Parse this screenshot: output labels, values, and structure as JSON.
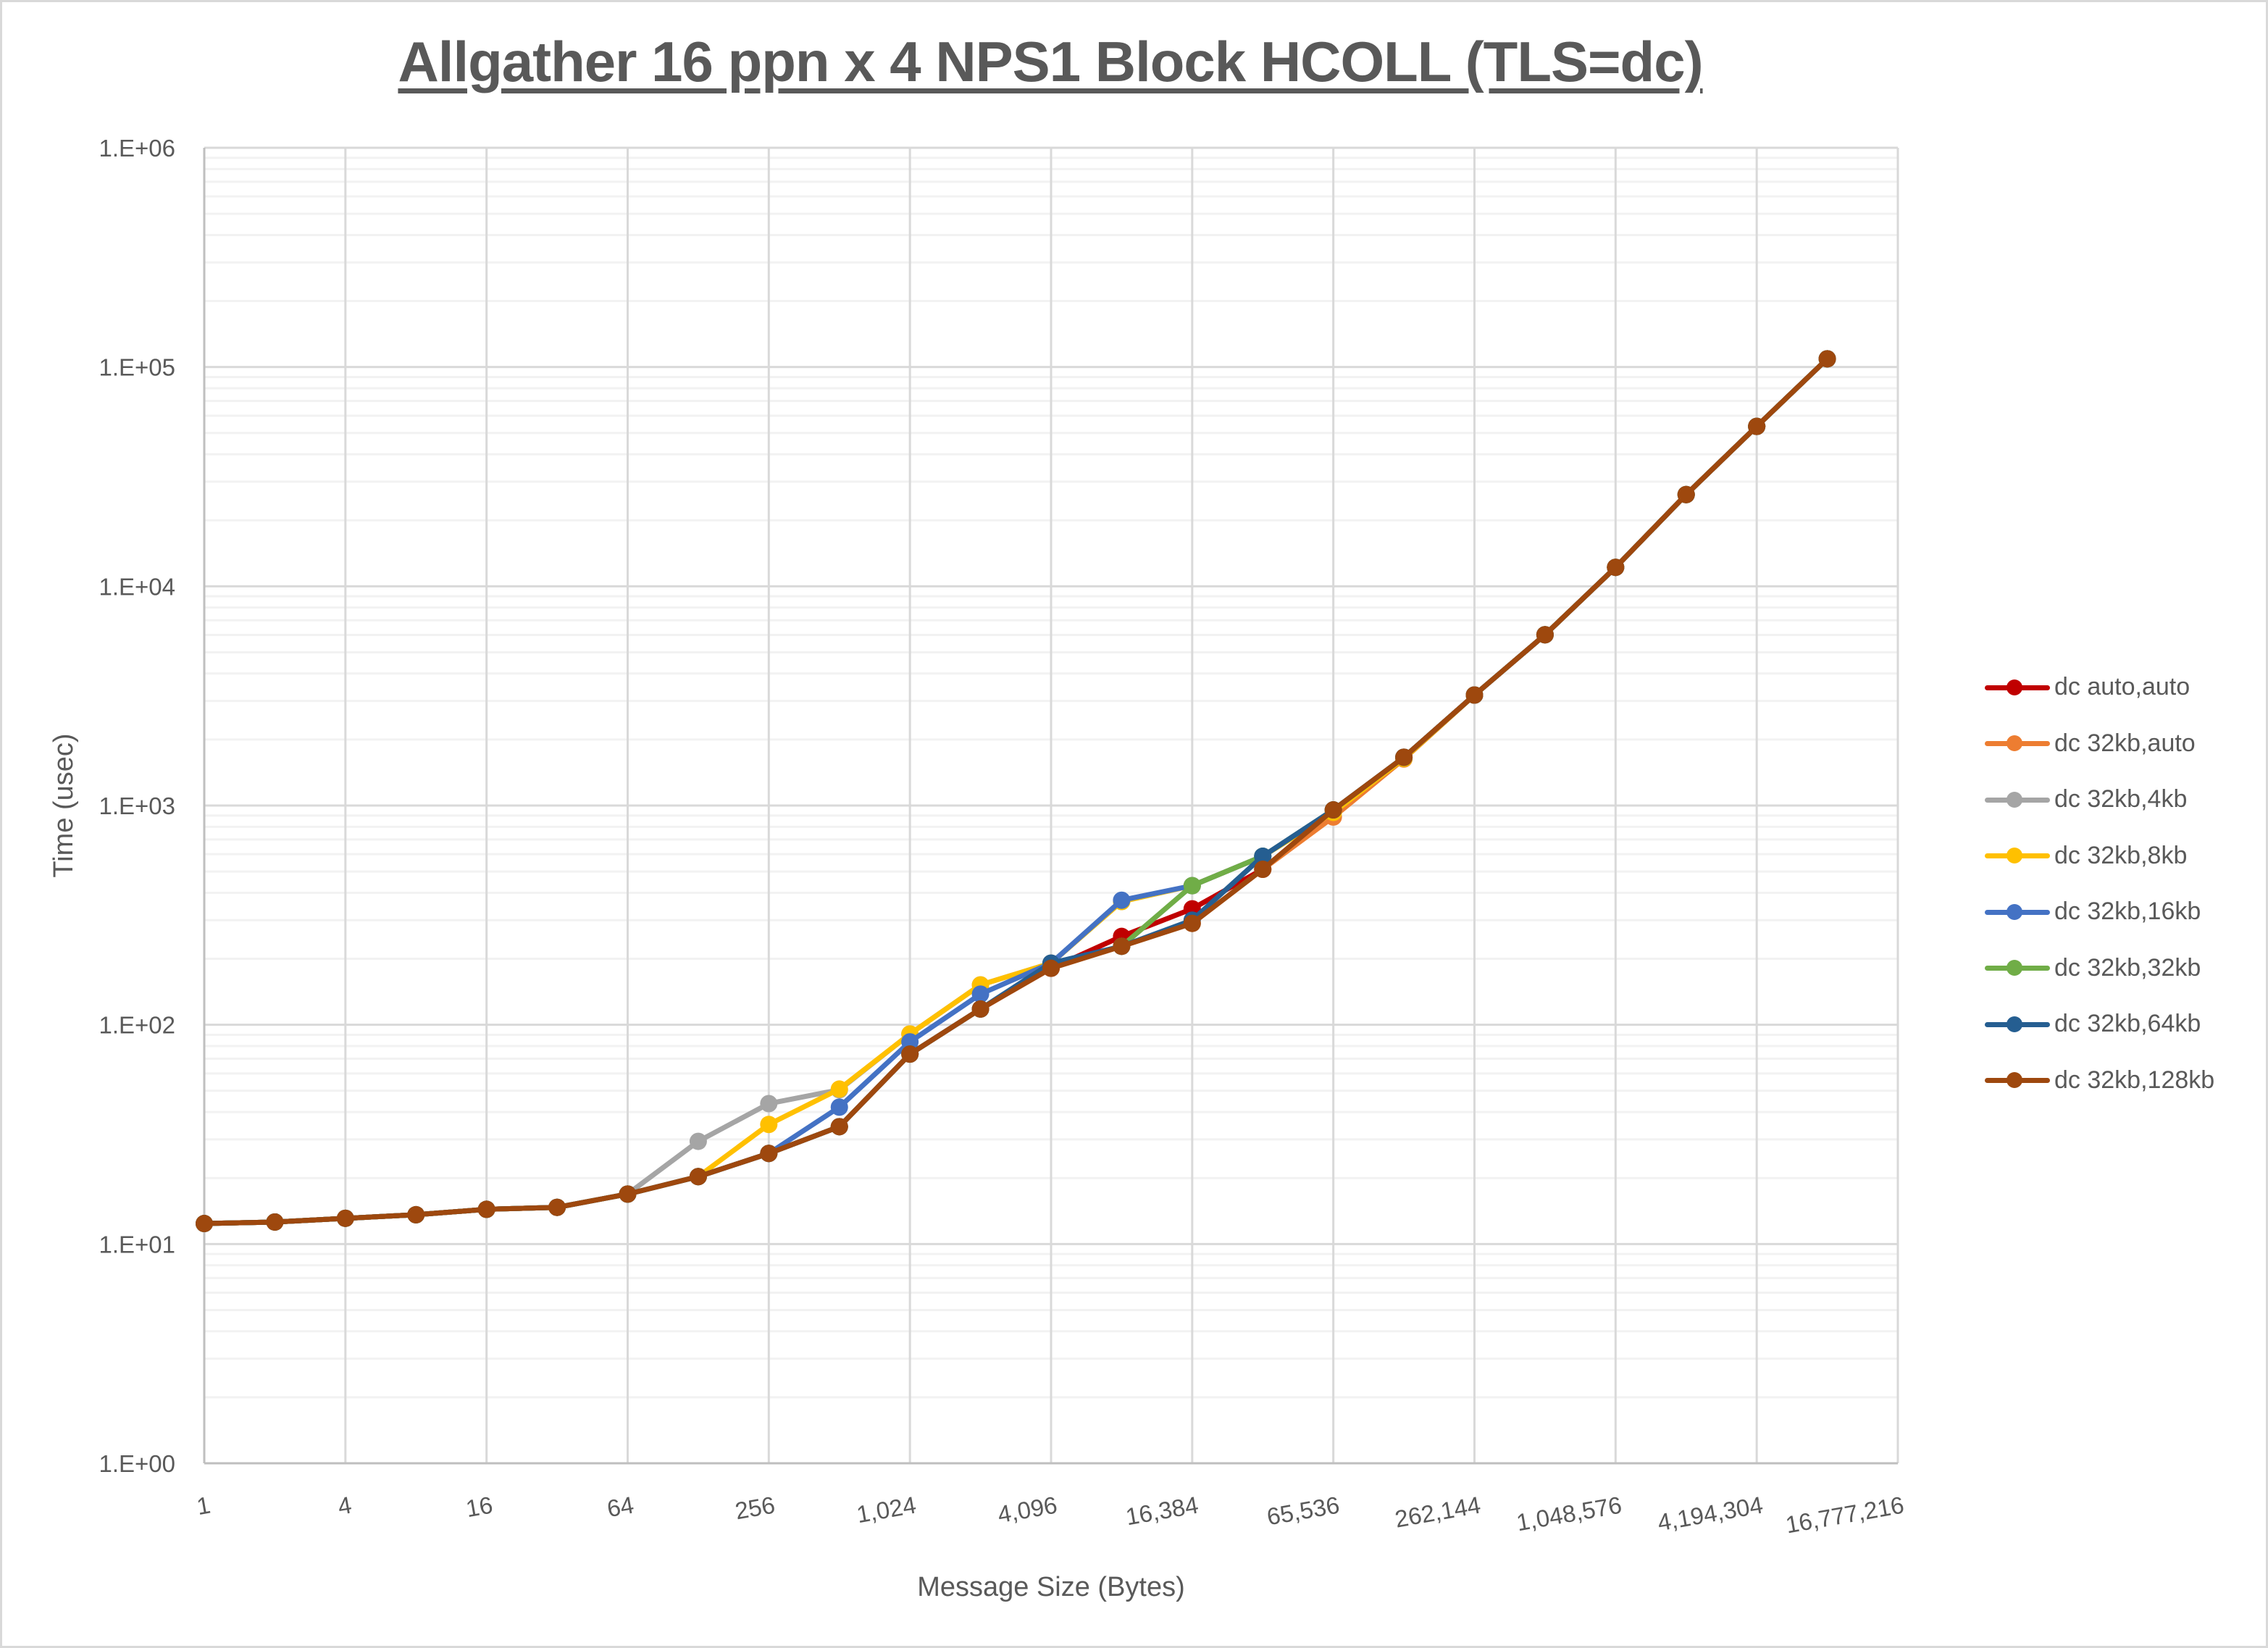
{
  "title": "Allgather 16 ppn x 4 NPS1 Block HCOLL (TLS=dc)",
  "chart_data": {
    "type": "line",
    "title": "Allgather 16 ppn x 4 NPS1 Block HCOLL (TLS=dc)",
    "xlabel": "Message Size (Bytes)",
    "ylabel": "Time (usec)",
    "x_scale": "log2",
    "y_scale": "log10",
    "ylim": [
      1,
      1000000
    ],
    "xlim": [
      1,
      16777216
    ],
    "grid": true,
    "legend_position": "right",
    "y_tick_labels": [
      "1.E+00",
      "1.E+01",
      "1.E+02",
      "1.E+03",
      "1.E+04",
      "1.E+05",
      "1.E+06"
    ],
    "x_tick_labels": [
      "1",
      "4",
      "16",
      "64",
      "256",
      "1,024",
      "4,096",
      "16,384",
      "65,536",
      "262,144",
      "1,048,576",
      "4,194,304",
      "16,777,216"
    ],
    "x": [
      1,
      2,
      4,
      8,
      16,
      32,
      64,
      128,
      256,
      512,
      1024,
      2048,
      4096,
      8192,
      16384,
      32768,
      65536,
      131072,
      262144,
      524288,
      1048576,
      2097152,
      4194304,
      8388608
    ],
    "series": [
      {
        "name": "dc auto,auto",
        "color": "#c00000",
        "values": [
          12.4,
          12.6,
          13.1,
          13.6,
          14.4,
          14.7,
          16.9,
          20.3,
          25.9,
          34.3,
          73.5,
          118,
          181,
          253,
          338,
          512,
          955,
          1660,
          3190,
          6010,
          12200,
          26200,
          53600,
          109000
        ]
      },
      {
        "name": "dc 32kb,auto",
        "color": "#ed7d31",
        "values": [
          12.4,
          12.6,
          13.1,
          13.6,
          14.4,
          14.7,
          16.9,
          20.3,
          25.9,
          34.3,
          73.5,
          118,
          181,
          228,
          290,
          512,
          886,
          1630,
          3190,
          6010,
          12200,
          26200,
          53600,
          109000
        ]
      },
      {
        "name": "dc 32kb,4kb",
        "color": "#a5a5a5",
        "values": [
          12.4,
          12.6,
          13.1,
          13.6,
          14.4,
          14.7,
          16.9,
          29.4,
          43.7,
          50.5,
          90.8,
          152,
          191,
          365,
          431,
          587,
          955,
          1660,
          3190,
          6010,
          12200,
          26200,
          53600,
          109000
        ]
      },
      {
        "name": "dc 32kb,8kb",
        "color": "#ffc000",
        "values": [
          12.4,
          12.6,
          13.1,
          13.6,
          14.4,
          14.7,
          16.9,
          20.3,
          35.1,
          50.9,
          90.8,
          152,
          191,
          365,
          431,
          587,
          930,
          1640,
          3190,
          6010,
          12200,
          26200,
          53600,
          109000
        ]
      },
      {
        "name": "dc 32kb,16kb",
        "color": "#4472c4",
        "values": [
          12.4,
          12.6,
          13.1,
          13.6,
          14.4,
          14.7,
          16.9,
          20.3,
          25.9,
          42.1,
          83.6,
          138,
          191,
          370,
          431,
          587,
          955,
          1660,
          3190,
          6010,
          12200,
          26200,
          53600,
          109000
        ]
      },
      {
        "name": "dc 32kb,32kb",
        "color": "#70ad47",
        "values": [
          12.4,
          12.6,
          13.1,
          13.6,
          14.4,
          14.7,
          16.9,
          20.3,
          25.9,
          34.3,
          73.5,
          118,
          186,
          228,
          431,
          587,
          955,
          1660,
          3190,
          6010,
          12200,
          26200,
          53600,
          109000
        ]
      },
      {
        "name": "dc 32kb,64kb",
        "color": "#255e91",
        "values": [
          12.4,
          12.6,
          13.1,
          13.6,
          14.4,
          14.7,
          16.9,
          20.3,
          25.9,
          34.3,
          73.5,
          118,
          191,
          228,
          300,
          587,
          955,
          1660,
          3190,
          6010,
          12200,
          26200,
          53600,
          109000
        ]
      },
      {
        "name": "dc 32kb,128kb",
        "color": "#9e480e",
        "values": [
          12.4,
          12.6,
          13.1,
          13.6,
          14.4,
          14.7,
          16.9,
          20.3,
          25.9,
          34.3,
          73.5,
          118,
          181,
          228,
          290,
          512,
          955,
          1660,
          3190,
          6010,
          12200,
          26200,
          53600,
          109000
        ]
      }
    ]
  },
  "colors": {
    "text": "#595959",
    "gridline_major": "#d9d9d9",
    "gridline_minor": "#f2f2f2",
    "axis": "#bfbfbf",
    "border": "#d9d9d9"
  }
}
